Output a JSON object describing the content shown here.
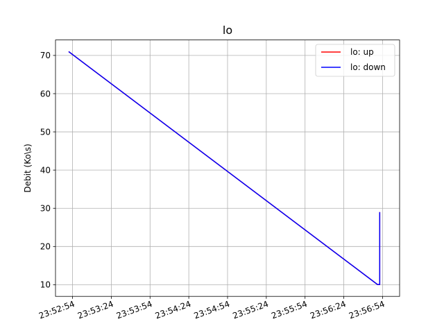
{
  "chart_data": {
    "type": "line",
    "title": "lo",
    "xlabel": "",
    "ylabel": "Debit (Ko\\s)",
    "x_tick_labels": [
      "23:52:54",
      "23:53:24",
      "23:53:54",
      "23:54:24",
      "23:54:54",
      "23:55:24",
      "23:55:54",
      "23:56:24",
      "23:56:54"
    ],
    "x_ticks_seconds": [
      0,
      30,
      60,
      90,
      120,
      150,
      180,
      210,
      240
    ],
    "xlim_seconds": [
      -13.2,
      253.2
    ],
    "y_ticks": [
      10,
      20,
      30,
      40,
      50,
      60,
      70
    ],
    "ylim": [
      6.95,
      74.05
    ],
    "grid": true,
    "legend_position": "top-right",
    "series": [
      {
        "name": "lo: up",
        "color": "#ff0000",
        "x_seconds": [
          -3,
          236.1,
          236.1,
          237.8,
          237.8
        ],
        "y": [
          71,
          10.05,
          10.05,
          10.05,
          29
        ]
      },
      {
        "name": "lo: down",
        "color": "#0000ff",
        "x_seconds": [
          -3,
          236.1,
          236.1,
          237.8,
          237.8
        ],
        "y": [
          71,
          10.05,
          10.05,
          10.05,
          29
        ]
      }
    ]
  }
}
